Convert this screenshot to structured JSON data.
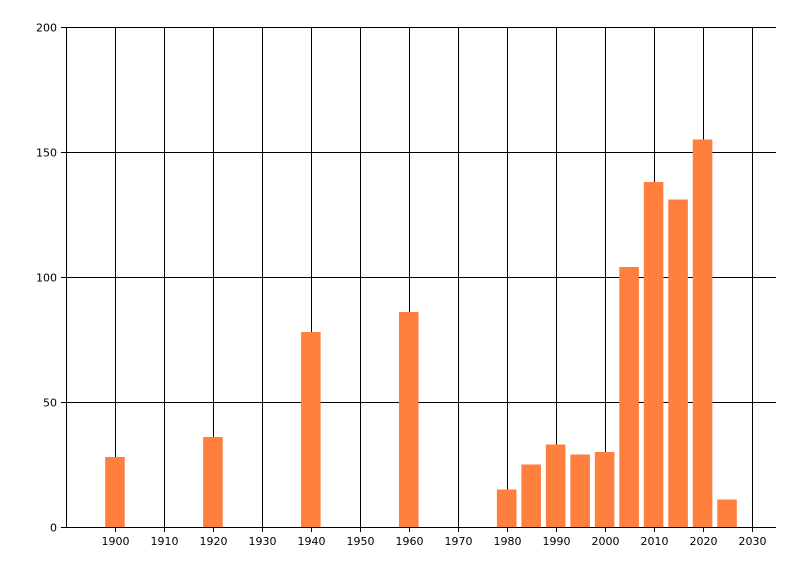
{
  "chart_data": {
    "type": "bar",
    "title": "",
    "xlabel": "",
    "ylabel": "",
    "x": [
      1900,
      1920,
      1940,
      1960,
      1980,
      1985,
      1990,
      1995,
      2000,
      2005,
      2010,
      2015,
      2020,
      2025
    ],
    "values": [
      28,
      36,
      78,
      86,
      15,
      25,
      33,
      29,
      30,
      104,
      138,
      131,
      155,
      11
    ],
    "xlim": [
      1890,
      2035
    ],
    "ylim": [
      0,
      200
    ],
    "xticks": [
      1900,
      1910,
      1920,
      1930,
      1940,
      1950,
      1960,
      1970,
      1980,
      1990,
      2000,
      2010,
      2020,
      2030
    ],
    "yticks": [
      0,
      50,
      100,
      150,
      200
    ],
    "xtick_labels": [
      "1900",
      "1910",
      "1920",
      "1930",
      "1940",
      "1950",
      "1960",
      "1970",
      "1980",
      "1990",
      "2000",
      "2010",
      "2020",
      "2030"
    ],
    "ytick_labels": [
      "0",
      "50",
      "100",
      "150",
      "200"
    ],
    "grid": true,
    "bar_color": "#ff7f3f",
    "grid_color": "#000000",
    "legend": "none"
  }
}
